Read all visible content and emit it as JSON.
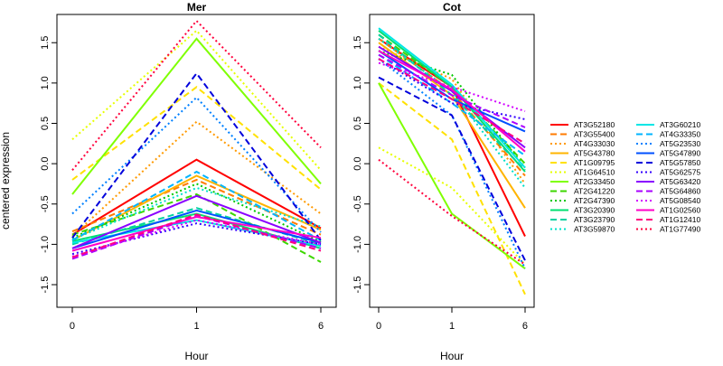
{
  "chart_data": {
    "type": "line",
    "ylabel": "centered expression",
    "xlabel": "Hour",
    "x_categories": [
      "0",
      "1",
      "6"
    ],
    "y_ticks": [
      -1.5,
      -1.0,
      -0.5,
      0.0,
      0.5,
      1.0,
      1.5
    ],
    "y_tick_labels": [
      "-1.5",
      "-1.0",
      "-0.5",
      "0.0",
      "0.5",
      "1.0",
      "1.5"
    ],
    "ylim": [
      -1.78,
      1.85
    ],
    "legend_position": "right",
    "panels": [
      {
        "title": "Mer",
        "series": [
          {
            "name": "AT3G52180",
            "color": "#ff0000",
            "dash": "solid",
            "values": [
              -0.88,
              0.05,
              -0.8
            ]
          },
          {
            "name": "AT3G55400",
            "color": "#ff7b00",
            "dash": "dashed",
            "values": [
              -0.84,
              -0.2,
              -0.88
            ]
          },
          {
            "name": "AT4G33030",
            "color": "#ff9a00",
            "dash": "dotted",
            "values": [
              -0.9,
              0.52,
              -0.62
            ]
          },
          {
            "name": "AT5G43780",
            "color": "#ffb400",
            "dash": "solid",
            "values": [
              -0.95,
              -0.15,
              -0.82
            ]
          },
          {
            "name": "AT1G09795",
            "color": "#ffe100",
            "dash": "dashed",
            "values": [
              -0.2,
              0.95,
              -0.32
            ]
          },
          {
            "name": "AT1G64510",
            "color": "#e6ff00",
            "dash": "dotted",
            "values": [
              0.3,
              1.65,
              -0.08
            ]
          },
          {
            "name": "AT2G33450",
            "color": "#7fff00",
            "dash": "solid",
            "values": [
              -0.38,
              1.55,
              -0.25
            ]
          },
          {
            "name": "AT2G41220",
            "color": "#3cd700",
            "dash": "dashed",
            "values": [
              -0.88,
              -0.38,
              -1.22
            ]
          },
          {
            "name": "AT2G47390",
            "color": "#00c800",
            "dash": "dotted",
            "values": [
              -0.92,
              -0.25,
              -0.97
            ]
          },
          {
            "name": "AT3G20390",
            "color": "#00e070",
            "dash": "solid",
            "values": [
              -0.96,
              -0.62,
              -1.05
            ]
          },
          {
            "name": "AT3G23790",
            "color": "#00d2a0",
            "dash": "dashed",
            "values": [
              -1.0,
              -0.55,
              -1.0
            ]
          },
          {
            "name": "AT3G59870",
            "color": "#00e0c8",
            "dash": "dotted",
            "values": [
              -0.94,
              -0.3,
              -0.78
            ]
          },
          {
            "name": "AT3G60210",
            "color": "#00e6e6",
            "dash": "solid",
            "values": [
              -0.98,
              -0.7,
              -1.02
            ]
          },
          {
            "name": "AT4G33350",
            "color": "#00b4ff",
            "dash": "dashed",
            "values": [
              -0.95,
              -0.1,
              -0.95
            ]
          },
          {
            "name": "AT5G23530",
            "color": "#0080ff",
            "dash": "dotted",
            "values": [
              -0.62,
              0.82,
              -0.85
            ]
          },
          {
            "name": "AT5G47890",
            "color": "#0050ff",
            "dash": "solid",
            "values": [
              -1.05,
              -0.58,
              -0.98
            ]
          },
          {
            "name": "AT5G57850",
            "color": "#0000dc",
            "dash": "dashed",
            "values": [
              -0.92,
              1.12,
              -0.95
            ]
          },
          {
            "name": "AT5G62575",
            "color": "#3200ff",
            "dash": "dotted",
            "values": [
              -1.12,
              -0.74,
              -1.0
            ]
          },
          {
            "name": "AT5G63420",
            "color": "#8a00ff",
            "dash": "solid",
            "values": [
              -1.05,
              -0.4,
              -0.98
            ]
          },
          {
            "name": "AT5G64860",
            "color": "#aa00ff",
            "dash": "dashed",
            "values": [
              -1.18,
              -0.65,
              -1.05
            ]
          },
          {
            "name": "AT5G08540",
            "color": "#d200ff",
            "dash": "dotted",
            "values": [
              -1.15,
              -0.7,
              -1.0
            ]
          },
          {
            "name": "AT1G02560",
            "color": "#ff00c8",
            "dash": "solid",
            "values": [
              -1.08,
              -0.66,
              -0.92
            ]
          },
          {
            "name": "AT1G12410",
            "color": "#ff0080",
            "dash": "dashed",
            "values": [
              -1.16,
              -0.63,
              -1.08
            ]
          },
          {
            "name": "AT1G77490",
            "color": "#ff003c",
            "dash": "dotted",
            "values": [
              -0.08,
              1.77,
              0.2
            ]
          }
        ]
      },
      {
        "title": "Cot",
        "series": [
          {
            "name": "AT3G52180",
            "color": "#ff0000",
            "dash": "solid",
            "values": [
              1.55,
              0.95,
              -0.9
            ]
          },
          {
            "name": "AT3G55400",
            "color": "#ff7b00",
            "dash": "dashed",
            "values": [
              1.55,
              0.9,
              -0.15
            ]
          },
          {
            "name": "AT4G33030",
            "color": "#ff9a00",
            "dash": "dotted",
            "values": [
              1.45,
              1.05,
              -0.25
            ]
          },
          {
            "name": "AT5G43780",
            "color": "#ffb400",
            "dash": "solid",
            "values": [
              1.5,
              0.85,
              -0.55
            ]
          },
          {
            "name": "AT1G09795",
            "color": "#ffe100",
            "dash": "dashed",
            "values": [
              1.0,
              0.3,
              -1.62
            ]
          },
          {
            "name": "AT1G64510",
            "color": "#e6ff00",
            "dash": "dotted",
            "values": [
              0.2,
              -0.3,
              -1.25
            ]
          },
          {
            "name": "AT2G33450",
            "color": "#7fff00",
            "dash": "solid",
            "values": [
              1.0,
              -0.62,
              -1.3
            ]
          },
          {
            "name": "AT2G41220",
            "color": "#3cd700",
            "dash": "dashed",
            "values": [
              1.6,
              0.95,
              0.0
            ]
          },
          {
            "name": "AT2G47390",
            "color": "#00c800",
            "dash": "dotted",
            "values": [
              1.4,
              1.1,
              -0.05
            ]
          },
          {
            "name": "AT3G20390",
            "color": "#00e070",
            "dash": "solid",
            "values": [
              1.65,
              0.95,
              -0.1
            ]
          },
          {
            "name": "AT3G23790",
            "color": "#00d2a0",
            "dash": "dashed",
            "values": [
              1.6,
              0.85,
              -0.08
            ]
          },
          {
            "name": "AT3G59870",
            "color": "#00e0c8",
            "dash": "dotted",
            "values": [
              1.55,
              0.9,
              -0.3
            ]
          },
          {
            "name": "AT3G60210",
            "color": "#00e6e6",
            "dash": "solid",
            "values": [
              1.68,
              0.98,
              -0.05
            ]
          },
          {
            "name": "AT4G33350",
            "color": "#00b4ff",
            "dash": "dashed",
            "values": [
              1.35,
              0.75,
              0.1
            ]
          },
          {
            "name": "AT5G23530",
            "color": "#0080ff",
            "dash": "dotted",
            "values": [
              1.3,
              0.6,
              -1.3
            ]
          },
          {
            "name": "AT5G47890",
            "color": "#0050ff",
            "dash": "solid",
            "values": [
              1.4,
              0.8,
              0.4
            ]
          },
          {
            "name": "AT5G57850",
            "color": "#0000dc",
            "dash": "dashed",
            "values": [
              1.07,
              0.6,
              -1.2
            ]
          },
          {
            "name": "AT5G62575",
            "color": "#3200ff",
            "dash": "dotted",
            "values": [
              1.3,
              0.75,
              0.55
            ]
          },
          {
            "name": "AT5G63420",
            "color": "#8a00ff",
            "dash": "solid",
            "values": [
              1.45,
              0.9,
              0.2
            ]
          },
          {
            "name": "AT5G64860",
            "color": "#aa00ff",
            "dash": "dashed",
            "values": [
              1.35,
              0.85,
              0.45
            ]
          },
          {
            "name": "AT5G08540",
            "color": "#d200ff",
            "dash": "dotted",
            "values": [
              1.25,
              0.95,
              0.65
            ]
          },
          {
            "name": "AT1G02560",
            "color": "#ff00c8",
            "dash": "solid",
            "values": [
              1.4,
              0.92,
              0.15
            ]
          },
          {
            "name": "AT1G12410",
            "color": "#ff0080",
            "dash": "dashed",
            "values": [
              1.3,
              0.8,
              0.25
            ]
          },
          {
            "name": "AT1G77490",
            "color": "#ff003c",
            "dash": "dotted",
            "values": [
              0.05,
              -0.65,
              -1.25
            ]
          }
        ]
      }
    ]
  }
}
